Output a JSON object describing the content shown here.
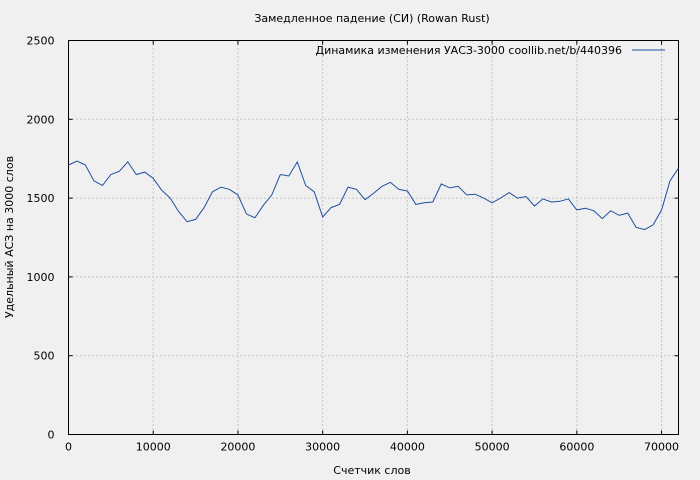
{
  "chart_data": {
    "type": "line",
    "title": "Замедленное падение (СИ) (Rowan Rust)",
    "xlabel": "Счетчик слов",
    "ylabel": "Удельный АСЗ на 3000 слов",
    "xlim": [
      0,
      72000
    ],
    "ylim": [
      0,
      2500
    ],
    "x_ticks": [
      0,
      10000,
      20000,
      30000,
      40000,
      50000,
      60000,
      70000
    ],
    "y_ticks": [
      0,
      500,
      1000,
      1500,
      2000,
      2500
    ],
    "grid": true,
    "legend_position": "top-right",
    "series": [
      {
        "name": "Динамика изменения УАСЗ-3000  coollib.net/b/440396",
        "color": "#1f4fa0",
        "x": [
          0,
          1000,
          2000,
          3000,
          4000,
          5000,
          6000,
          7000,
          8000,
          9000,
          10000,
          11000,
          12000,
          13000,
          14000,
          15000,
          16000,
          17000,
          18000,
          19000,
          20000,
          21000,
          22000,
          23000,
          24000,
          25000,
          26000,
          27000,
          28000,
          29000,
          30000,
          31000,
          32000,
          33000,
          34000,
          35000,
          36000,
          37000,
          38000,
          39000,
          40000,
          41000,
          42000,
          43000,
          44000,
          45000,
          46000,
          47000,
          48000,
          49000,
          50000,
          51000,
          52000,
          53000,
          54000,
          55000,
          56000,
          57000,
          58000,
          59000,
          60000,
          61000,
          62000,
          63000,
          64000,
          65000,
          66000,
          67000,
          68000,
          69000,
          70000,
          71000,
          72000
        ],
        "y": [
          1710,
          1735,
          1710,
          1610,
          1580,
          1650,
          1670,
          1730,
          1650,
          1665,
          1625,
          1550,
          1500,
          1415,
          1350,
          1365,
          1440,
          1540,
          1570,
          1555,
          1520,
          1400,
          1375,
          1455,
          1520,
          1650,
          1640,
          1730,
          1580,
          1540,
          1380,
          1440,
          1460,
          1570,
          1555,
          1490,
          1530,
          1575,
          1600,
          1555,
          1545,
          1460,
          1470,
          1475,
          1590,
          1565,
          1575,
          1520,
          1525,
          1500,
          1470,
          1500,
          1535,
          1500,
          1510,
          1450,
          1495,
          1475,
          1480,
          1495,
          1425,
          1435,
          1420,
          1370,
          1420,
          1390,
          1405,
          1315,
          1300,
          1330,
          1425,
          1610,
          1690
        ]
      }
    ]
  }
}
